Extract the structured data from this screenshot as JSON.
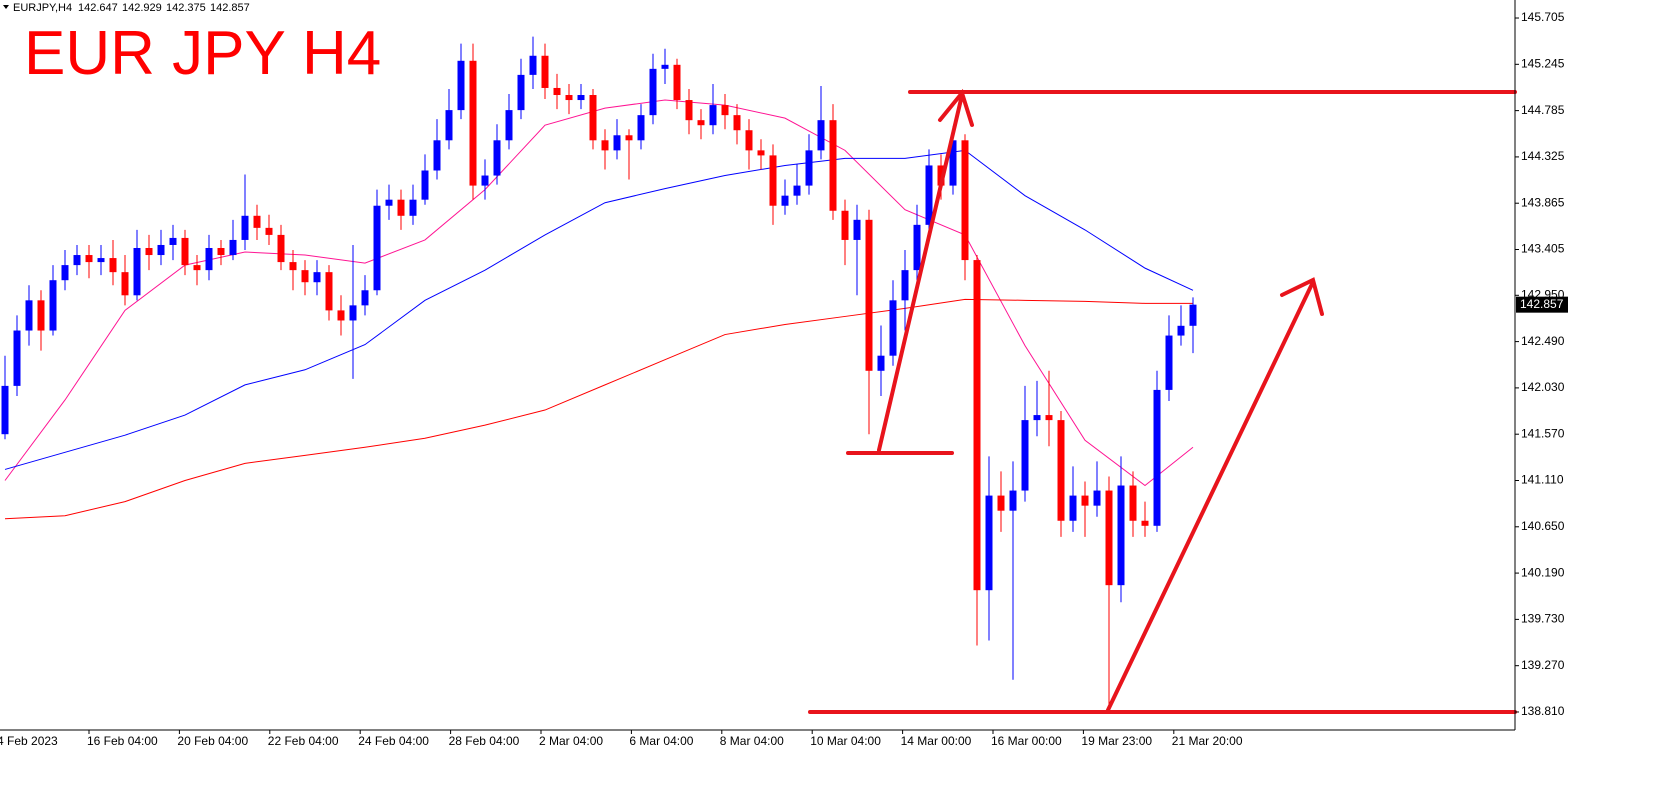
{
  "chart_data": {
    "type": "candlestick",
    "symbol": "EURJPY,H4",
    "title": "EUR JPY H4",
    "title_color": "#ff0000",
    "bull_color": "#0000ff",
    "bear_color": "#ff0000",
    "ylim": [
      138.631,
      145.884
    ],
    "yticks": [
      145.705,
      145.245,
      144.785,
      144.325,
      143.865,
      143.405,
      {
        "value": 142.95,
        "label": "142.950"
      },
      {
        "value": 142.49,
        "label": "142.490"
      },
      {
        "value": 142.03,
        "label": "142.030"
      },
      {
        "value": 141.57,
        "label": "141.570"
      },
      {
        "value": 141.11,
        "label": "141.110"
      },
      {
        "value": 140.65,
        "label": "140.650"
      },
      {
        "value": 140.19,
        "label": "140.190"
      },
      {
        "value": 139.73,
        "label": "139.730"
      },
      {
        "value": 139.27,
        "label": "139.270"
      },
      {
        "value": 138.81,
        "label": "138.810"
      }
    ],
    "xlabels": [
      "4 Feb 2023",
      "16 Feb 04:00",
      "20 Feb 04:00",
      "22 Feb 04:00",
      "24 Feb 04:00",
      "28 Feb 04:00",
      "2 Mar 04:00",
      "6 Mar 04:00",
      "8 Mar 04:00",
      "10 Mar 04:00",
      "14 Mar 00:00",
      "16 Mar 00:00",
      "19 Mar 23:00",
      "21 Mar 20:00"
    ],
    "open": [
      141.57,
      142.05,
      142.6,
      142.9,
      142.6,
      143.1,
      143.25,
      143.35,
      143.28,
      143.32,
      143.18,
      142.95,
      143.42,
      143.35,
      143.45,
      143.52,
      143.25,
      143.2,
      143.42,
      143.35,
      143.5,
      143.74,
      143.62,
      143.55,
      143.28,
      143.2,
      143.08,
      143.18,
      142.8,
      142.7,
      142.85,
      143.0,
      143.84,
      143.9,
      143.74,
      143.9,
      144.19,
      144.49,
      144.79,
      145.28,
      144.04,
      144.14,
      144.49,
      144.79,
      145.14,
      145.33,
      145.01,
      144.94,
      144.89,
      144.94,
      144.49,
      144.39,
      144.54,
      144.49,
      144.74,
      145.2,
      145.24,
      144.89,
      144.69,
      144.64,
      144.84,
      144.74,
      144.59,
      144.39,
      144.34,
      143.84,
      143.94,
      144.04,
      144.39,
      144.69,
      143.79,
      143.5,
      143.7,
      142.2,
      142.35,
      142.9,
      143.2,
      143.65,
      144.24,
      144.04,
      144.49,
      143.3,
      140.02,
      140.96,
      140.81,
      141.01,
      141.71,
      141.76,
      141.71,
      140.71,
      140.96,
      140.86,
      141.01,
      140.07,
      141.06,
      140.71,
      140.66,
      142.01,
      142.55,
      142.647
    ],
    "high": [
      142.35,
      142.75,
      143.05,
      143.0,
      143.25,
      143.4,
      143.45,
      143.45,
      143.45,
      143.5,
      143.35,
      143.6,
      143.55,
      143.6,
      143.65,
      143.6,
      143.35,
      143.55,
      143.5,
      143.7,
      144.15,
      143.85,
      143.75,
      143.65,
      143.4,
      143.3,
      143.3,
      143.25,
      142.95,
      143.45,
      143.15,
      144.0,
      144.05,
      144.0,
      144.05,
      144.35,
      144.7,
      145.0,
      145.45,
      145.45,
      144.3,
      144.65,
      144.95,
      145.3,
      145.52,
      145.45,
      145.15,
      145.05,
      145.05,
      145.0,
      144.6,
      144.7,
      144.6,
      144.85,
      145.35,
      145.4,
      145.3,
      145.0,
      144.8,
      145.05,
      144.95,
      144.85,
      144.7,
      144.5,
      144.45,
      144.1,
      144.25,
      144.55,
      145.03,
      144.85,
      143.9,
      143.85,
      143.8,
      142.65,
      143.1,
      143.4,
      143.85,
      144.4,
      144.35,
      144.63,
      144.55,
      143.35,
      141.35,
      141.2,
      141.3,
      142.05,
      142.1,
      142.2,
      141.8,
      141.25,
      141.1,
      141.3,
      141.15,
      141.35,
      141.2,
      140.9,
      142.2,
      142.75,
      142.85,
      142.929
    ],
    "low": [
      141.52,
      141.95,
      142.45,
      142.4,
      142.55,
      143.0,
      143.15,
      143.12,
      143.15,
      143.05,
      142.85,
      142.9,
      143.2,
      143.25,
      143.3,
      143.15,
      143.05,
      143.1,
      143.25,
      143.3,
      143.4,
      143.5,
      143.45,
      143.2,
      143.0,
      142.95,
      142.95,
      142.7,
      142.55,
      142.12,
      142.75,
      142.95,
      143.7,
      143.6,
      143.65,
      143.85,
      144.1,
      144.4,
      144.7,
      143.9,
      143.9,
      144.05,
      144.4,
      144.7,
      145.0,
      144.9,
      144.8,
      144.75,
      144.8,
      144.4,
      144.2,
      144.3,
      144.1,
      144.4,
      144.65,
      145.05,
      144.8,
      144.55,
      144.5,
      144.55,
      144.6,
      144.45,
      144.2,
      144.2,
      143.65,
      143.75,
      143.85,
      143.95,
      144.3,
      143.7,
      143.25,
      142.95,
      141.57,
      141.95,
      142.25,
      142.6,
      143.1,
      143.55,
      143.9,
      143.95,
      143.1,
      139.47,
      139.52,
      140.6,
      139.13,
      140.9,
      141.55,
      141.45,
      140.55,
      140.6,
      140.55,
      140.75,
      138.81,
      139.9,
      140.55,
      140.55,
      140.6,
      141.9,
      142.45,
      142.375
    ],
    "close": [
      142.05,
      142.6,
      142.9,
      142.6,
      143.1,
      143.25,
      143.35,
      143.28,
      143.32,
      143.18,
      142.95,
      143.42,
      143.35,
      143.45,
      143.52,
      143.25,
      143.2,
      143.42,
      143.35,
      143.5,
      143.74,
      143.62,
      143.55,
      143.28,
      143.2,
      143.08,
      143.18,
      142.8,
      142.7,
      142.85,
      143.0,
      143.84,
      143.9,
      143.74,
      143.9,
      144.19,
      144.49,
      144.79,
      145.28,
      144.04,
      144.14,
      144.49,
      144.79,
      145.14,
      145.33,
      145.01,
      144.94,
      144.89,
      144.94,
      144.49,
      144.39,
      144.54,
      144.49,
      144.74,
      145.2,
      145.24,
      144.89,
      144.69,
      144.64,
      144.84,
      144.74,
      144.59,
      144.39,
      144.34,
      143.84,
      143.94,
      144.04,
      144.39,
      144.69,
      143.79,
      143.5,
      143.7,
      142.2,
      142.35,
      142.9,
      143.2,
      143.65,
      144.24,
      144.04,
      144.49,
      143.3,
      140.02,
      140.96,
      140.81,
      141.01,
      141.71,
      141.76,
      141.71,
      140.71,
      140.96,
      140.86,
      141.01,
      140.07,
      141.06,
      140.71,
      140.66,
      142.01,
      142.55,
      142.647,
      142.857
    ],
    "moving_averages": [
      {
        "color": "#ff1493",
        "x": [
          0,
          5,
          10,
          15,
          20,
          25,
          30,
          35,
          40,
          45,
          50,
          55,
          60,
          65,
          70,
          75,
          80,
          85,
          90,
          95,
          99
        ],
        "values": [
          141.11,
          141.91,
          142.8,
          143.25,
          143.38,
          143.35,
          143.27,
          143.5,
          144.0,
          144.64,
          144.81,
          144.89,
          144.84,
          144.71,
          144.39,
          143.8,
          143.55,
          142.45,
          141.51,
          141.06,
          141.44
        ]
      },
      {
        "color": "#0000ff",
        "x": [
          0,
          5,
          10,
          15,
          20,
          25,
          30,
          35,
          40,
          45,
          50,
          55,
          60,
          65,
          70,
          75,
          80,
          85,
          90,
          95,
          99
        ],
        "values": [
          141.22,
          141.39,
          141.56,
          141.76,
          142.06,
          142.21,
          142.46,
          142.9,
          143.2,
          143.55,
          143.87,
          144.01,
          144.14,
          144.24,
          144.31,
          144.31,
          144.39,
          143.94,
          143.6,
          143.22,
          143.0
        ]
      },
      {
        "color": "#ff0000",
        "x": [
          0,
          5,
          10,
          15,
          20,
          25,
          30,
          35,
          40,
          45,
          50,
          55,
          60,
          65,
          70,
          75,
          80,
          85,
          90,
          95,
          99
        ],
        "values": [
          140.73,
          140.76,
          140.9,
          141.11,
          141.28,
          141.36,
          141.44,
          141.53,
          141.66,
          141.81,
          142.06,
          142.31,
          142.56,
          142.66,
          142.74,
          142.82,
          142.91,
          142.9,
          142.89,
          142.87,
          142.87
        ]
      }
    ]
  }
}
